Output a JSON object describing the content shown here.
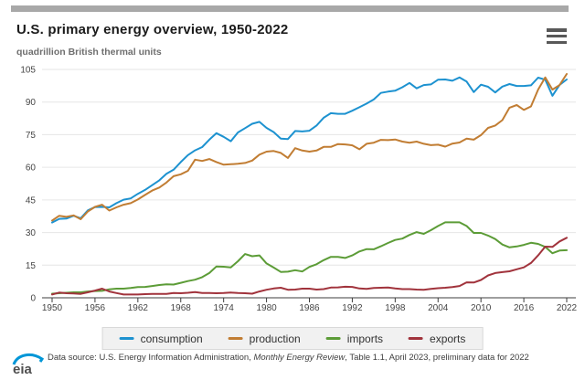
{
  "header": {
    "title": "U.S. primary energy overview, 1950-2022",
    "subtitle": "quadrillion British thermal units",
    "menu_icon": "hamburger-menu"
  },
  "chart_data": {
    "type": "line",
    "title": "U.S. primary energy overview, 1950-2022",
    "ylabel": "quadrillion British thermal units",
    "xlabel": "",
    "ylim": [
      0,
      105
    ],
    "yticks": [
      0,
      15,
      30,
      45,
      60,
      75,
      90,
      105
    ],
    "xticks": [
      1950,
      1956,
      1962,
      1968,
      1974,
      1980,
      1986,
      1992,
      1998,
      2004,
      2010,
      2016,
      2022
    ],
    "grid": true,
    "legend_position": "bottom",
    "x": [
      1950,
      1951,
      1952,
      1953,
      1954,
      1955,
      1956,
      1957,
      1958,
      1959,
      1960,
      1961,
      1962,
      1963,
      1964,
      1965,
      1966,
      1967,
      1968,
      1969,
      1970,
      1971,
      1972,
      1973,
      1974,
      1975,
      1976,
      1977,
      1978,
      1979,
      1980,
      1981,
      1982,
      1983,
      1984,
      1985,
      1986,
      1987,
      1988,
      1989,
      1990,
      1991,
      1992,
      1993,
      1994,
      1995,
      1996,
      1997,
      1998,
      1999,
      2000,
      2001,
      2002,
      2003,
      2004,
      2005,
      2006,
      2007,
      2008,
      2009,
      2010,
      2011,
      2012,
      2013,
      2014,
      2015,
      2016,
      2017,
      2018,
      2019,
      2020,
      2021,
      2022
    ],
    "series": [
      {
        "name": "consumption",
        "color": "#1d92d0",
        "values": [
          34.6,
          36.3,
          36.4,
          37.7,
          36.6,
          40.2,
          41.7,
          41.8,
          41.6,
          43.5,
          45.1,
          45.7,
          47.8,
          49.6,
          51.8,
          54.0,
          57.0,
          58.9,
          62.4,
          65.6,
          67.8,
          69.3,
          72.7,
          75.7,
          74.0,
          72.0,
          76.0,
          78.0,
          80.0,
          80.9,
          78.1,
          76.2,
          73.2,
          73.0,
          76.7,
          76.5,
          76.8,
          79.2,
          82.8,
          84.9,
          84.6,
          84.6,
          86.0,
          87.6,
          89.3,
          91.2,
          94.2,
          94.8,
          95.2,
          96.8,
          98.8,
          96.3,
          97.8,
          98.1,
          100.3,
          100.4,
          99.8,
          101.3,
          99.4,
          94.6,
          98.0,
          97.0,
          94.4,
          97.1,
          98.3,
          97.4,
          97.4,
          97.7,
          101.2,
          100.3,
          92.9,
          97.9,
          100.4
        ]
      },
      {
        "name": "production",
        "color": "#c17d33",
        "values": [
          35.5,
          37.7,
          37.2,
          37.9,
          36.1,
          39.7,
          41.8,
          42.8,
          40.1,
          41.6,
          42.8,
          43.5,
          45.2,
          47.3,
          49.3,
          50.7,
          53.0,
          55.9,
          56.8,
          58.4,
          63.5,
          62.9,
          63.8,
          62.4,
          61.2,
          61.4,
          61.6,
          62.0,
          63.1,
          65.8,
          67.2,
          67.5,
          66.6,
          64.3,
          68.8,
          67.7,
          67.2,
          67.7,
          69.4,
          69.4,
          70.7,
          70.5,
          70.1,
          68.3,
          70.8,
          71.3,
          72.6,
          72.5,
          72.8,
          71.8,
          71.3,
          71.8,
          70.8,
          70.2,
          70.4,
          69.5,
          70.9,
          71.4,
          73.2,
          72.7,
          74.8,
          78.1,
          79.2,
          81.7,
          87.4,
          88.6,
          86.4,
          88.0,
          95.7,
          101.3,
          95.7,
          97.8,
          102.9
        ]
      },
      {
        "name": "imports",
        "color": "#5c9c37",
        "values": [
          1.9,
          2.1,
          2.3,
          2.5,
          2.5,
          2.9,
          3.1,
          3.2,
          3.9,
          4.2,
          4.2,
          4.5,
          4.9,
          5.0,
          5.4,
          5.9,
          6.2,
          6.1,
          6.9,
          7.7,
          8.3,
          9.5,
          11.4,
          14.4,
          14.3,
          14.0,
          16.8,
          20.1,
          19.1,
          19.5,
          15.8,
          13.9,
          11.9,
          12.0,
          12.7,
          12.1,
          14.2,
          15.4,
          17.3,
          18.8,
          18.8,
          18.3,
          19.5,
          21.3,
          22.4,
          22.3,
          23.7,
          25.2,
          26.6,
          27.2,
          28.9,
          30.2,
          29.4,
          31.1,
          33.0,
          34.7,
          34.7,
          34.7,
          33.0,
          29.8,
          29.8,
          28.6,
          27.0,
          24.5,
          23.2,
          23.6,
          24.3,
          25.3,
          24.8,
          23.4,
          20.5,
          21.7,
          21.9
        ]
      },
      {
        "name": "exports",
        "color": "#a1333c",
        "values": [
          1.5,
          2.4,
          2.1,
          2.0,
          1.8,
          2.5,
          3.3,
          4.2,
          2.9,
          2.2,
          1.5,
          1.5,
          1.5,
          1.7,
          1.8,
          1.8,
          1.8,
          2.2,
          2.1,
          2.3,
          2.6,
          2.2,
          2.2,
          2.1,
          2.2,
          2.4,
          2.2,
          2.1,
          1.9,
          2.9,
          3.7,
          4.3,
          4.6,
          3.7,
          3.8,
          4.2,
          4.2,
          3.8,
          4.0,
          4.7,
          4.8,
          5.1,
          5.0,
          4.3,
          4.1,
          4.5,
          4.6,
          4.7,
          4.3,
          4.0,
          4.0,
          3.8,
          3.7,
          4.1,
          4.4,
          4.6,
          4.9,
          5.4,
          7.1,
          7.0,
          8.2,
          10.3,
          11.4,
          11.8,
          12.2,
          13.1,
          14.0,
          16.0,
          19.5,
          23.5,
          23.4,
          25.9,
          27.6
        ]
      }
    ]
  },
  "footer": {
    "logo_text": "eia",
    "logo_color": "#4f4f4f",
    "logo_arc_color": "#0096d7",
    "source_prefix": "Data source: U.S. Energy Information Administration, ",
    "source_italic": "Monthly Energy Review",
    "source_suffix": ", Table 1.1, April 2023, preliminary data for 2022"
  }
}
